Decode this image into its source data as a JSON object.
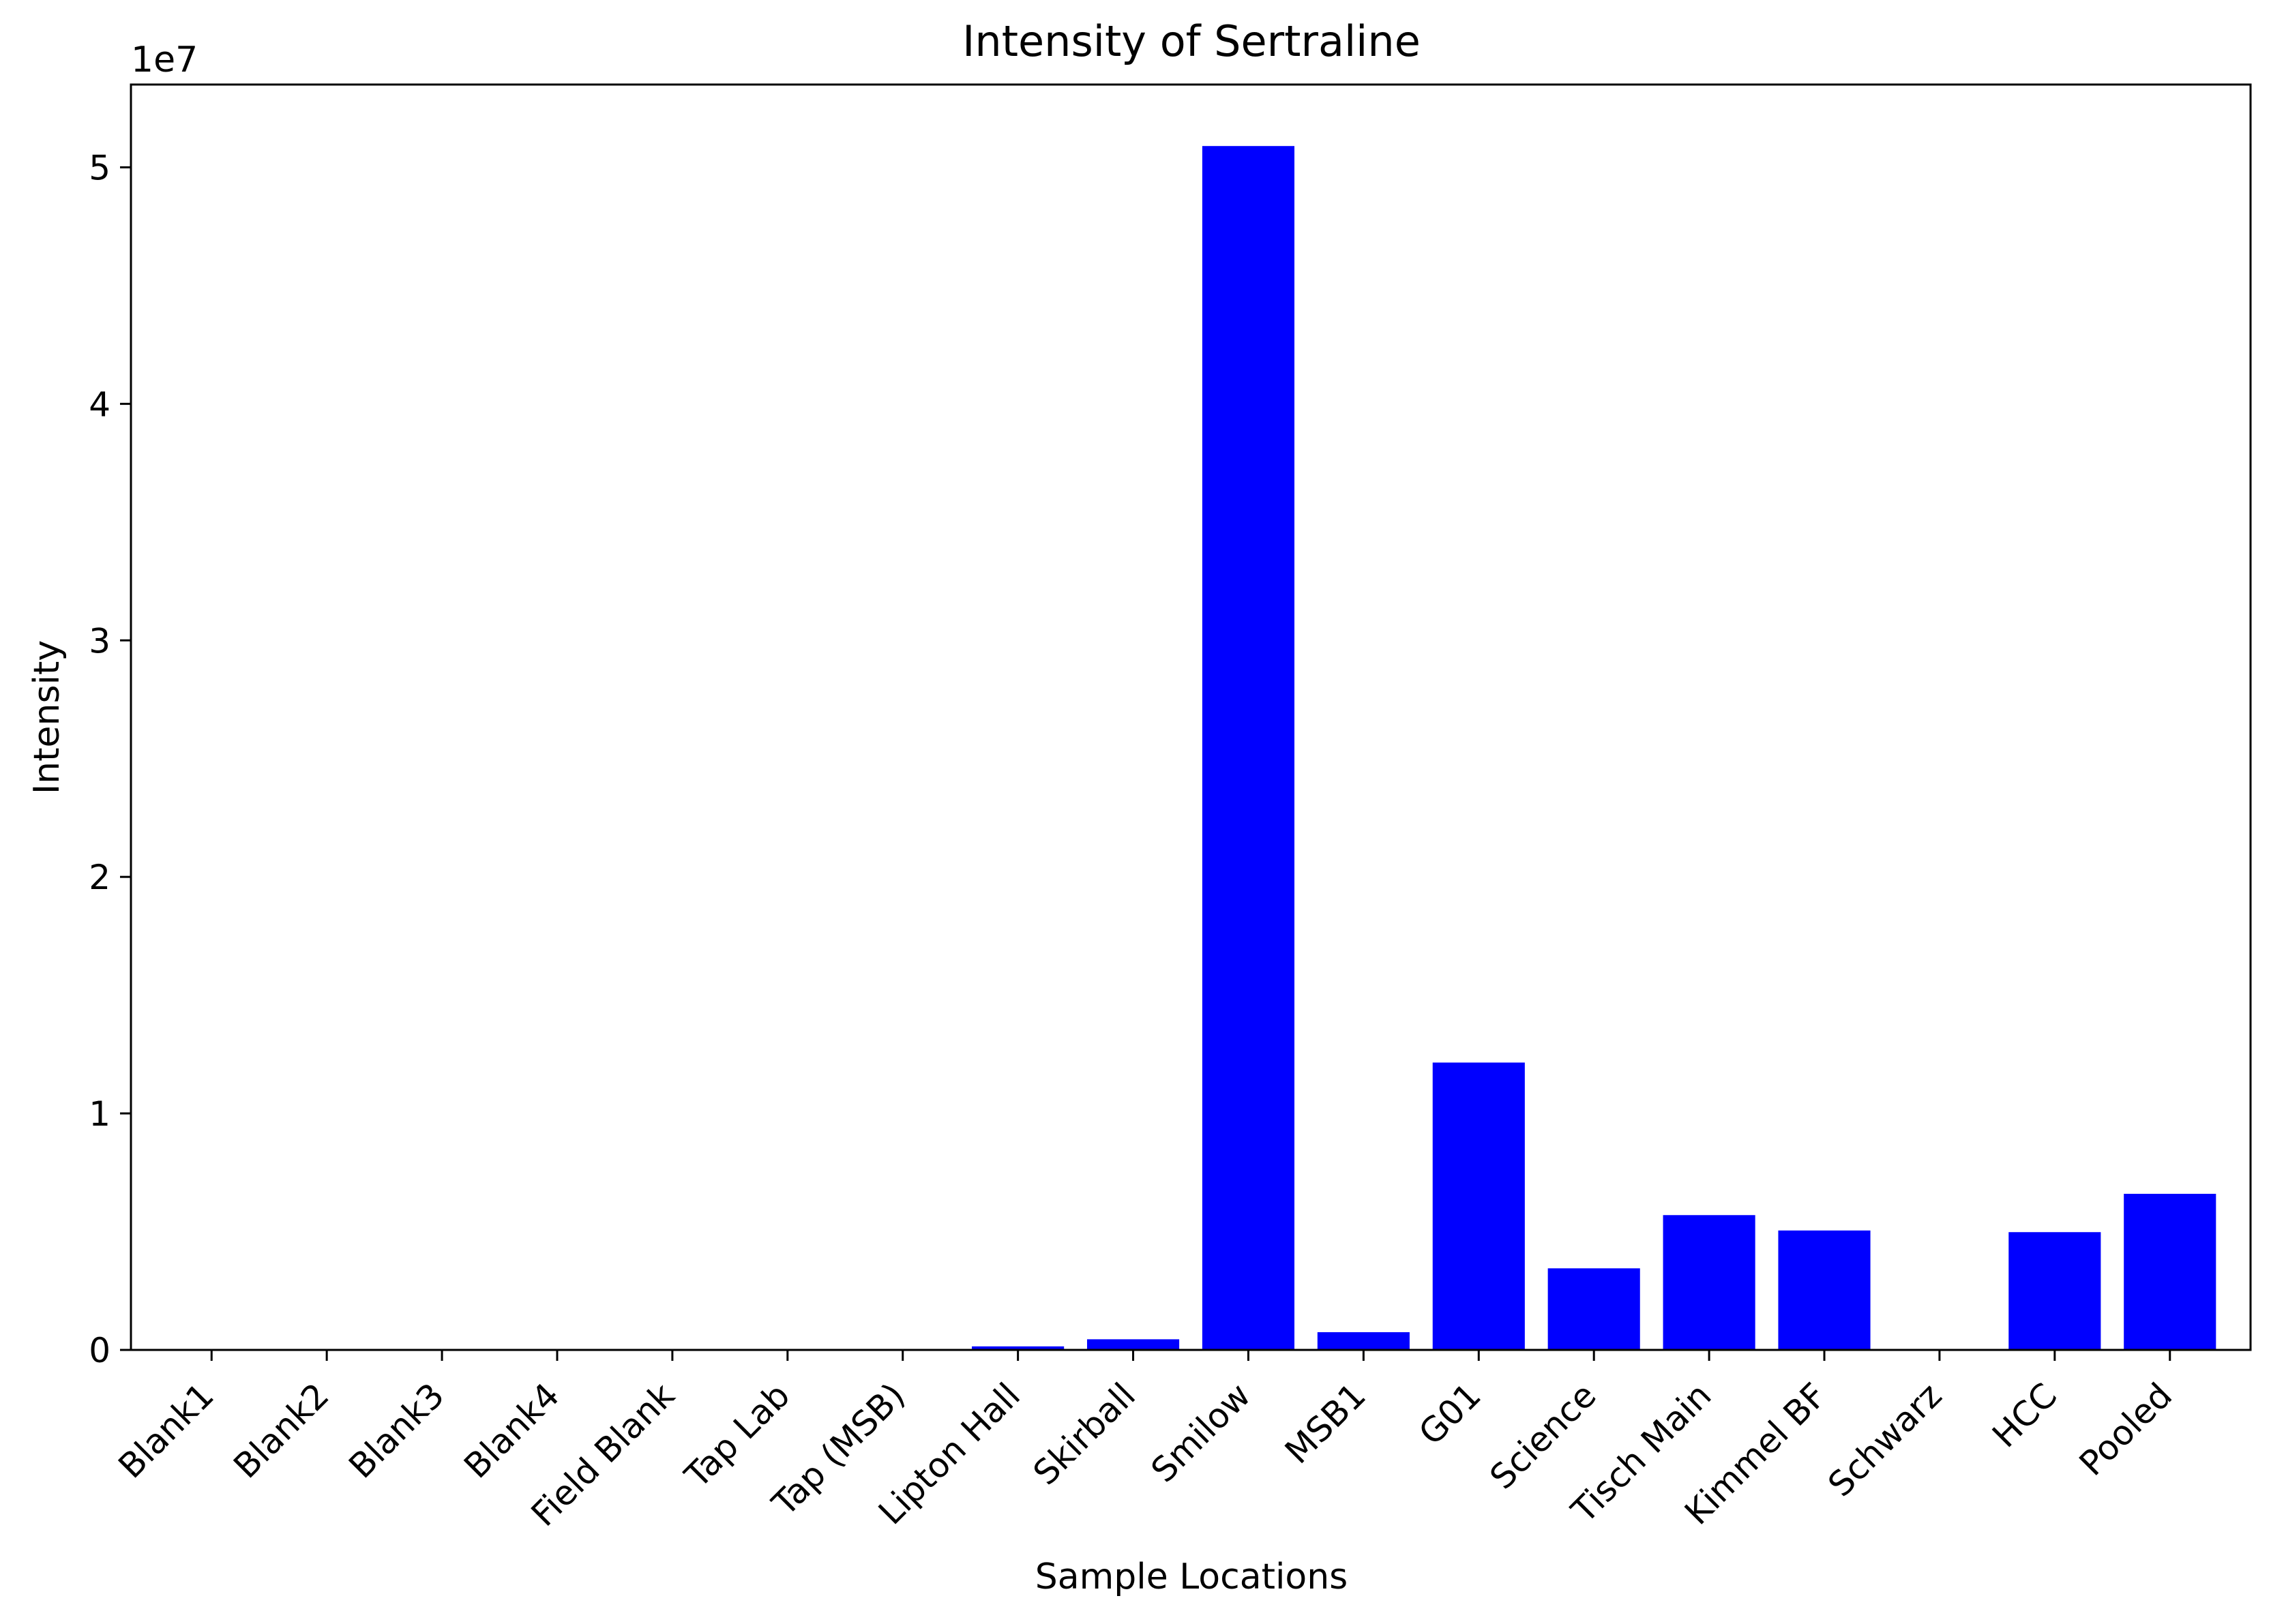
{
  "chart_data": {
    "type": "bar",
    "title": "Intensity of Sertraline",
    "xlabel": "Sample Locations",
    "ylabel": "Intensity",
    "y_offset_label": "1e7",
    "y_scale": 10000000,
    "ylim": [
      0,
      53500000
    ],
    "y_ticks": [
      0,
      10000000,
      20000000,
      30000000,
      40000000,
      50000000
    ],
    "y_tick_labels": [
      "0",
      "1",
      "2",
      "3",
      "4",
      "5"
    ],
    "categories": [
      "Blank1",
      "Blank2",
      "Blank3",
      "Blank4",
      "Field Blank",
      "Tap Lab",
      "Tap (MSB)",
      "Lipton Hall",
      "Skirball",
      "Smilow",
      "MSB1",
      "G01",
      "Science",
      "Tisch Main",
      "Kimmel BF",
      "Schwarz",
      "HCC",
      "Pooled"
    ],
    "values": [
      0,
      0,
      0,
      0,
      0,
      0,
      0,
      150000,
      450000,
      50900000,
      750000,
      12150000,
      3450000,
      5700000,
      5050000,
      0,
      4980000,
      6600000
    ],
    "bar_color": "#0000ff",
    "grid": false,
    "legend": "none"
  }
}
